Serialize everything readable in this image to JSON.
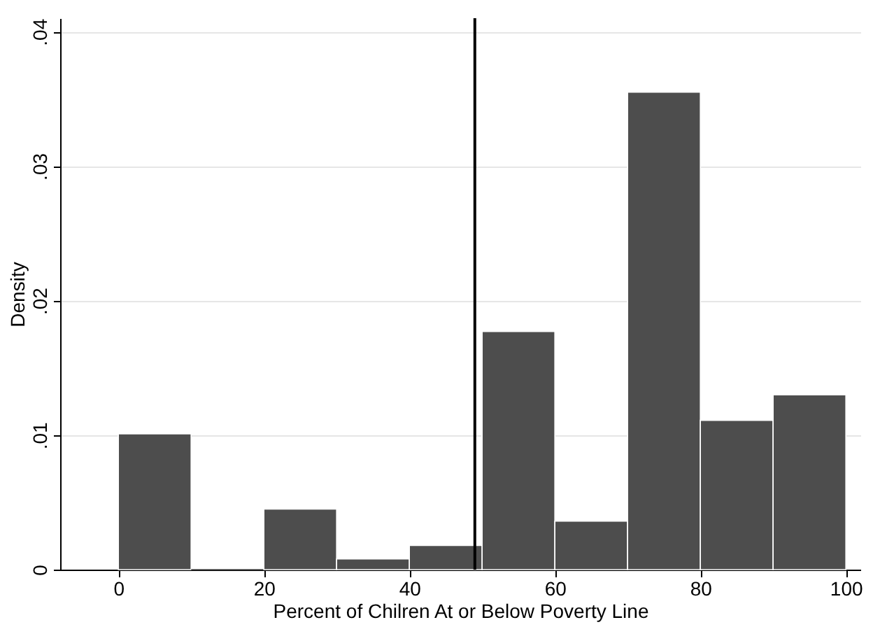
{
  "chart_data": {
    "type": "histogram",
    "xlabel": "Percent of Chilren At or Below Poverty Line",
    "ylabel": "Density",
    "bins": [
      0,
      10,
      20,
      30,
      40,
      50,
      60,
      70,
      80,
      90,
      100
    ],
    "values": [
      0.0101,
      0,
      0.0045,
      0.0008,
      0.0018,
      0.0177,
      0.0036,
      0.0355,
      0.0111,
      0.013
    ],
    "color": "#4d4d4d",
    "xlim": [
      -8,
      102
    ],
    "xticks": [
      0,
      20,
      40,
      60,
      80,
      100
    ],
    "ylim": [
      0,
      0.041
    ],
    "yticks": [
      {
        "value": 0,
        "label": "0"
      },
      {
        "value": 0.01,
        "label": ".01"
      },
      {
        "value": 0.02,
        "label": ".02"
      },
      {
        "value": 0.03,
        "label": ".03"
      },
      {
        "value": 0.04,
        "label": ".04"
      }
    ],
    "grid": "y",
    "ref_lines": [
      {
        "axis": "x",
        "value": 49,
        "color": "#000000"
      }
    ]
  }
}
